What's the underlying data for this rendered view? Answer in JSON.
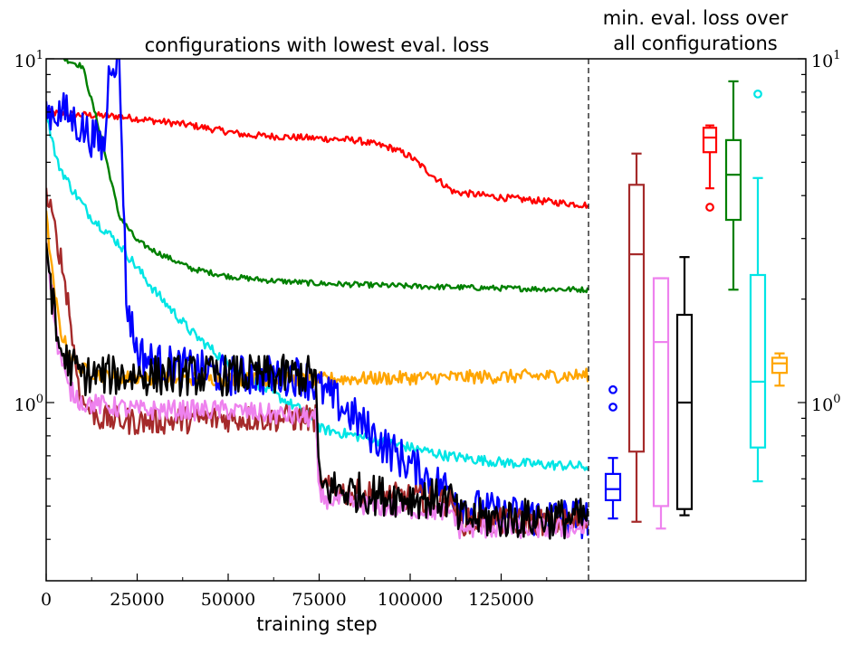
{
  "chart_data": {
    "type": "line",
    "title": "configurations with lowest eval. loss",
    "xlabel": "training step",
    "ylabel": "",
    "xlim": [
      0,
      149000
    ],
    "ylim": [
      0.35,
      10
    ],
    "yscale": "log",
    "x_ticks": [
      0,
      25000,
      50000,
      75000,
      100000,
      125000
    ],
    "x_tick_labels": [
      "0",
      "25000",
      "50000",
      "75000",
      "100000",
      "125000"
    ],
    "y_tick_base": "10",
    "y_tick_exponents": [
      "1",
      "0"
    ],
    "series": [
      {
        "color": "#ff0000",
        "x": [
          0,
          5000,
          20000,
          40000,
          55000,
          70000,
          85000,
          95000,
          100000,
          107000,
          112000,
          125000,
          149000
        ],
        "values": [
          7.0,
          6.9,
          6.8,
          6.4,
          6.0,
          5.9,
          5.8,
          5.5,
          5.2,
          4.5,
          4.1,
          3.95,
          3.75
        ],
        "noise": 0.01
      },
      {
        "color": "#008000",
        "x": [
          0,
          5000,
          10000,
          15000,
          20000,
          25000,
          30000,
          40000,
          50000,
          60000,
          75000,
          100000,
          125000,
          149000
        ],
        "values": [
          12,
          10,
          9.5,
          6.0,
          3.5,
          2.95,
          2.75,
          2.45,
          2.33,
          2.27,
          2.22,
          2.18,
          2.15,
          2.13
        ],
        "noise": 0.008
      },
      {
        "color": "#00e5e5",
        "x": [
          0,
          3000,
          7000,
          12000,
          20000,
          30000,
          40000,
          50000,
          60000,
          70000,
          74000,
          75000,
          80000,
          90000,
          100000,
          110000,
          125000,
          149000
        ],
        "values": [
          7.0,
          5.0,
          4.2,
          3.5,
          2.9,
          2.1,
          1.6,
          1.3,
          1.1,
          0.95,
          0.9,
          0.84,
          0.82,
          0.78,
          0.74,
          0.7,
          0.67,
          0.65
        ],
        "noise": 0.015
      },
      {
        "color": "#ffa500",
        "x": [
          0,
          2000,
          4000,
          7000,
          10000,
          15000,
          25000,
          50000,
          75000,
          100000,
          125000,
          149000
        ],
        "values": [
          3.5,
          2.2,
          1.6,
          1.35,
          1.25,
          1.2,
          1.18,
          1.17,
          1.17,
          1.18,
          1.19,
          1.2
        ],
        "noise": 0.02
      },
      {
        "color": "#0000ff",
        "x": [
          0,
          5000,
          12000,
          16000,
          17500,
          20000,
          21000,
          22000,
          25000,
          30000,
          40000,
          50000,
          60000,
          70000,
          75000,
          80000,
          85000,
          90000,
          95000,
          100000,
          105000,
          112000,
          115000,
          125000,
          149000
        ],
        "values": [
          7.0,
          7.0,
          6.0,
          5.5,
          10,
          10,
          5.0,
          2.0,
          1.4,
          1.3,
          1.25,
          1.2,
          1.2,
          1.2,
          1.1,
          1.0,
          0.9,
          0.8,
          0.72,
          0.66,
          0.6,
          0.55,
          0.5,
          0.47,
          0.46
        ],
        "noise": 0.06
      },
      {
        "color": "#a52a2a",
        "x": [
          0,
          3000,
          6000,
          8000,
          10000,
          15000,
          25000,
          50000,
          74000,
          75000,
          80000,
          100000,
          112000,
          113000,
          125000,
          149000
        ],
        "values": [
          4.0,
          3.0,
          2.0,
          1.3,
          1.0,
          0.9,
          0.88,
          0.9,
          0.9,
          0.57,
          0.55,
          0.53,
          0.51,
          0.45,
          0.45,
          0.45
        ],
        "noise": 0.04
      },
      {
        "color": "#ee82ee",
        "x": [
          0,
          3000,
          6000,
          10000,
          25000,
          50000,
          74000,
          75000,
          90000,
          100000,
          112000,
          113000,
          125000,
          149000
        ],
        "values": [
          3.0,
          1.5,
          1.1,
          1.0,
          0.95,
          0.95,
          0.9,
          0.53,
          0.5,
          0.49,
          0.48,
          0.43,
          0.43,
          0.43
        ],
        "noise": 0.03
      },
      {
        "color": "#000000",
        "x": [
          0,
          3000,
          6000,
          10000,
          25000,
          50000,
          74000,
          75000,
          90000,
          100000,
          112000,
          113000,
          125000,
          149000
        ],
        "values": [
          3.0,
          1.5,
          1.3,
          1.2,
          1.2,
          1.2,
          1.2,
          0.57,
          0.54,
          0.53,
          0.52,
          0.46,
          0.46,
          0.46
        ],
        "noise": 0.06
      }
    ],
    "boxplot": {
      "title_lines": [
        "min. eval. loss over",
        "all configurations"
      ],
      "boxes": [
        {
          "color": "#0000ff",
          "whisker_low": 0.46,
          "q1": 0.52,
          "median": 0.56,
          "q3": 0.62,
          "whisker_high": 0.69,
          "outliers": [
            0.97,
            1.09
          ]
        },
        {
          "color": "#a52a2a",
          "whisker_low": 0.45,
          "q1": 0.72,
          "median": 2.7,
          "q3": 4.3,
          "whisker_high": 5.3,
          "outliers": []
        },
        {
          "color": "#ee82ee",
          "whisker_low": 0.43,
          "q1": 0.5,
          "median": 1.5,
          "q3": 2.3,
          "whisker_high": 2.3,
          "outliers": []
        },
        {
          "color": "#000000",
          "whisker_low": 0.47,
          "q1": 0.49,
          "median": 1.0,
          "q3": 1.8,
          "whisker_high": 2.65,
          "outliers": []
        },
        {
          "color": "#ff0000",
          "whisker_low": 4.2,
          "q1": 5.35,
          "median": 5.9,
          "q3": 6.3,
          "whisker_high": 6.4,
          "outliers": [
            3.7
          ]
        },
        {
          "color": "#008000",
          "whisker_low": 2.13,
          "q1": 3.4,
          "median": 4.6,
          "q3": 5.8,
          "whisker_high": 8.6,
          "outliers": []
        },
        {
          "color": "#00e5e5",
          "whisker_low": 0.59,
          "q1": 0.74,
          "median": 1.15,
          "q3": 2.35,
          "whisker_high": 4.5,
          "outliers": [
            7.9
          ]
        },
        {
          "color": "#ffa500",
          "whisker_low": 1.12,
          "q1": 1.22,
          "median": 1.3,
          "q3": 1.35,
          "whisker_high": 1.39,
          "outliers": []
        }
      ]
    }
  }
}
